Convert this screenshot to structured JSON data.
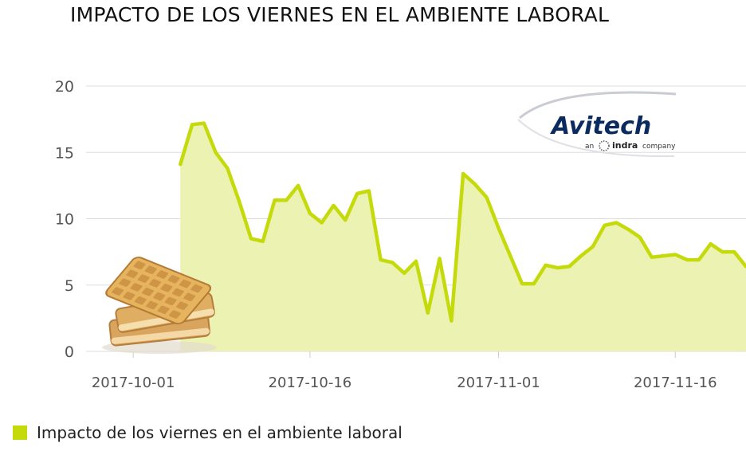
{
  "title": "IMPACTO DE LOS VIERNES EN EL AMBIENTE LABORAL",
  "colors": {
    "series": "#C5DA0A",
    "fill": "#EBF2B2",
    "grid": "#DDDDDD",
    "logo": "#0B2A5E"
  },
  "logo": {
    "name": "Avitech",
    "subtitle_an": "an",
    "subtitle_brand": "indra",
    "subtitle_company": "company"
  },
  "legend": {
    "label": "Impacto de los viernes en el ambiente laboral"
  },
  "chart_data": {
    "type": "area",
    "title": "IMPACTO DE LOS VIERNES EN EL AMBIENTE LABORAL",
    "xlabel": "",
    "ylabel": "",
    "ylim": [
      0,
      20
    ],
    "yticks": [
      0,
      5,
      10,
      15,
      20
    ],
    "xlim": [
      "2017-09-27",
      "2017-11-22"
    ],
    "xticks": [
      "2017-10-01",
      "2017-10-16",
      "2017-11-01",
      "2017-11-16"
    ],
    "grid": true,
    "legend_position": "bottom-left",
    "series": [
      {
        "name": "Impacto de los viernes en el ambiente laboral",
        "x": [
          "2017-10-05",
          "2017-10-06",
          "2017-10-07",
          "2017-10-08",
          "2017-10-09",
          "2017-10-10",
          "2017-10-11",
          "2017-10-12",
          "2017-10-13",
          "2017-10-14",
          "2017-10-15",
          "2017-10-16",
          "2017-10-17",
          "2017-10-18",
          "2017-10-19",
          "2017-10-20",
          "2017-10-21",
          "2017-10-22",
          "2017-10-23",
          "2017-10-24",
          "2017-10-25",
          "2017-10-26",
          "2017-10-27",
          "2017-10-28",
          "2017-10-29",
          "2017-10-30",
          "2017-10-31",
          "2017-11-01",
          "2017-11-02",
          "2017-11-03",
          "2017-11-04",
          "2017-11-05",
          "2017-11-06",
          "2017-11-07",
          "2017-11-08",
          "2017-11-09",
          "2017-11-10",
          "2017-11-11",
          "2017-11-12",
          "2017-11-13",
          "2017-11-14",
          "2017-11-15",
          "2017-11-16",
          "2017-11-17",
          "2017-11-18",
          "2017-11-19",
          "2017-11-20",
          "2017-11-21",
          "2017-11-22"
        ],
        "values": [
          14.1,
          17.1,
          17.2,
          15.0,
          13.8,
          11.3,
          8.5,
          8.3,
          11.4,
          11.4,
          12.5,
          10.4,
          9.7,
          11.0,
          9.9,
          11.9,
          12.1,
          6.9,
          6.7,
          5.9,
          6.8,
          2.9,
          7.0,
          2.3,
          13.4,
          12.6,
          11.6,
          9.3,
          7.2,
          5.1,
          5.1,
          6.5,
          6.3,
          6.4,
          7.2,
          7.9,
          9.5,
          9.7,
          9.2,
          8.6,
          7.1,
          7.2,
          7.3,
          6.9,
          6.9,
          8.1,
          7.5,
          7.5,
          6.4
        ]
      }
    ]
  }
}
